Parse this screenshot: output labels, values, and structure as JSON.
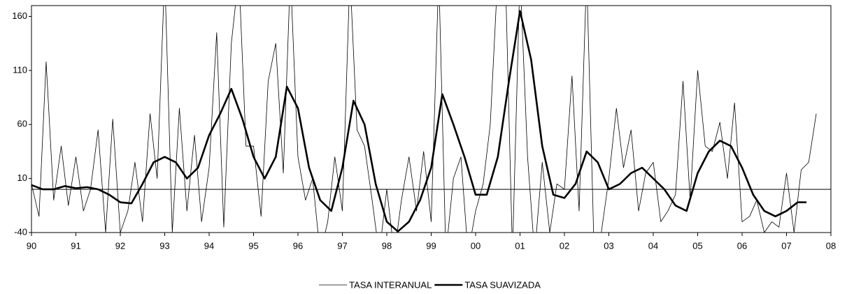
{
  "chart_data": {
    "type": "line",
    "xlim": [
      1990,
      2008
    ],
    "xticks": [
      {
        "value": 1990,
        "label": "90"
      },
      {
        "value": 1991,
        "label": "91"
      },
      {
        "value": 1992,
        "label": "92"
      },
      {
        "value": 1993,
        "label": "93"
      },
      {
        "value": 1994,
        "label": "94"
      },
      {
        "value": 1995,
        "label": "95"
      },
      {
        "value": 1996,
        "label": "96"
      },
      {
        "value": 1997,
        "label": "97"
      },
      {
        "value": 1998,
        "label": "98"
      },
      {
        "value": 1999,
        "label": "99"
      },
      {
        "value": 2000,
        "label": "00"
      },
      {
        "value": 2001,
        "label": "01"
      },
      {
        "value": 2002,
        "label": "02"
      },
      {
        "value": 2003,
        "label": "03"
      },
      {
        "value": 2004,
        "label": "04"
      },
      {
        "value": 2005,
        "label": "05"
      },
      {
        "value": 2006,
        "label": "06"
      },
      {
        "value": 2007,
        "label": "07"
      },
      {
        "value": 2008,
        "label": "08"
      }
    ],
    "ylim": [
      -40,
      170
    ],
    "yticks": [
      -40,
      10,
      60,
      110,
      160
    ],
    "hline": 0,
    "legend": "bottom",
    "series": [
      {
        "name": "TASA INTERANUAL",
        "color": "#000000",
        "width": 0.8,
        "x": [
          1990,
          1990.17,
          1990.33,
          1990.5,
          1990.67,
          1990.83,
          1991,
          1991.17,
          1991.33,
          1991.5,
          1991.67,
          1991.83,
          1992,
          1992.17,
          1992.33,
          1992.5,
          1992.67,
          1992.83,
          1993,
          1993.17,
          1993.33,
          1993.5,
          1993.67,
          1993.83,
          1994,
          1994.17,
          1994.33,
          1994.5,
          1994.67,
          1994.83,
          1995,
          1995.17,
          1995.33,
          1995.5,
          1995.67,
          1995.83,
          1996,
          1996.17,
          1996.33,
          1996.5,
          1996.67,
          1996.83,
          1997,
          1997.17,
          1997.33,
          1997.5,
          1997.67,
          1997.83,
          1998,
          1998.17,
          1998.33,
          1998.5,
          1998.67,
          1998.83,
          1999,
          1999.17,
          1999.33,
          1999.5,
          1999.67,
          1999.83,
          2000,
          2000.17,
          2000.33,
          2000.5,
          2000.67,
          2000.83,
          2001,
          2001.17,
          2001.33,
          2001.5,
          2001.67,
          2001.83,
          2002,
          2002.17,
          2002.33,
          2002.5,
          2002.67,
          2002.83,
          2003,
          2003.17,
          2003.33,
          2003.5,
          2003.67,
          2003.83,
          2004,
          2004.17,
          2004.33,
          2004.5,
          2004.67,
          2004.83,
          2005,
          2005.17,
          2005.33,
          2005.5,
          2005.67,
          2005.83,
          2006,
          2006.17,
          2006.33,
          2006.5,
          2006.67,
          2006.83,
          2007,
          2007.17,
          2007.33,
          2007.5,
          2007.67
        ],
        "values": [
          5,
          -25,
          118,
          -10,
          40,
          -15,
          30,
          -20,
          0,
          55,
          -40,
          65,
          -40,
          -20,
          25,
          -30,
          70,
          10,
          200,
          -40,
          75,
          -20,
          50,
          -30,
          20,
          145,
          -35,
          135,
          200,
          40,
          40,
          -25,
          100,
          135,
          15,
          200,
          30,
          -10,
          10,
          -60,
          -30,
          30,
          -20,
          200,
          55,
          40,
          -10,
          -60,
          0,
          -60,
          -10,
          30,
          -20,
          35,
          -30,
          200,
          -60,
          10,
          30,
          -60,
          -20,
          5,
          60,
          200,
          200,
          -60,
          200,
          30,
          -60,
          25,
          -40,
          5,
          0,
          105,
          -20,
          200,
          -60,
          -40,
          10,
          75,
          20,
          55,
          -20,
          15,
          25,
          -30,
          -20,
          -5,
          100,
          -10,
          110,
          40,
          35,
          62,
          10,
          80,
          -30,
          -25,
          -10,
          -40,
          -30,
          -35,
          15,
          -40,
          18,
          25,
          70
        ]
      },
      {
        "name": "TASA SUAVIZADA",
        "color": "#000000",
        "width": 2.6,
        "x": [
          1990,
          1990.25,
          1990.5,
          1990.75,
          1991,
          1991.25,
          1991.5,
          1991.75,
          1992,
          1992.25,
          1992.5,
          1992.75,
          1993,
          1993.25,
          1993.5,
          1993.75,
          1994,
          1994.25,
          1994.5,
          1994.75,
          1995,
          1995.25,
          1995.5,
          1995.75,
          1996,
          1996.25,
          1996.5,
          1996.75,
          1997,
          1997.25,
          1997.5,
          1997.75,
          1998,
          1998.25,
          1998.5,
          1998.75,
          1999,
          1999.25,
          1999.5,
          1999.75,
          2000,
          2000.25,
          2000.5,
          2000.75,
          2001,
          2001.25,
          2001.5,
          2001.75,
          2002,
          2002.25,
          2002.5,
          2002.75,
          2003,
          2003.25,
          2003.5,
          2003.75,
          2004,
          2004.25,
          2004.5,
          2004.75,
          2005,
          2005.25,
          2005.5,
          2005.75,
          2006,
          2006.25,
          2006.5,
          2006.75,
          2007,
          2007.25,
          2007.45
        ],
        "values": [
          4,
          0,
          0,
          3,
          1,
          2,
          0,
          -5,
          -12,
          -13,
          5,
          25,
          30,
          25,
          10,
          20,
          50,
          70,
          93,
          65,
          30,
          10,
          30,
          95,
          75,
          20,
          -10,
          -20,
          20,
          82,
          60,
          5,
          -30,
          -39,
          -30,
          -10,
          20,
          88,
          60,
          30,
          -5,
          -5,
          30,
          100,
          165,
          120,
          40,
          -5,
          -8,
          5,
          35,
          25,
          0,
          5,
          15,
          20,
          10,
          0,
          -15,
          -20,
          15,
          35,
          45,
          40,
          20,
          -5,
          -20,
          -25,
          -20,
          -12,
          -12
        ]
      }
    ]
  }
}
